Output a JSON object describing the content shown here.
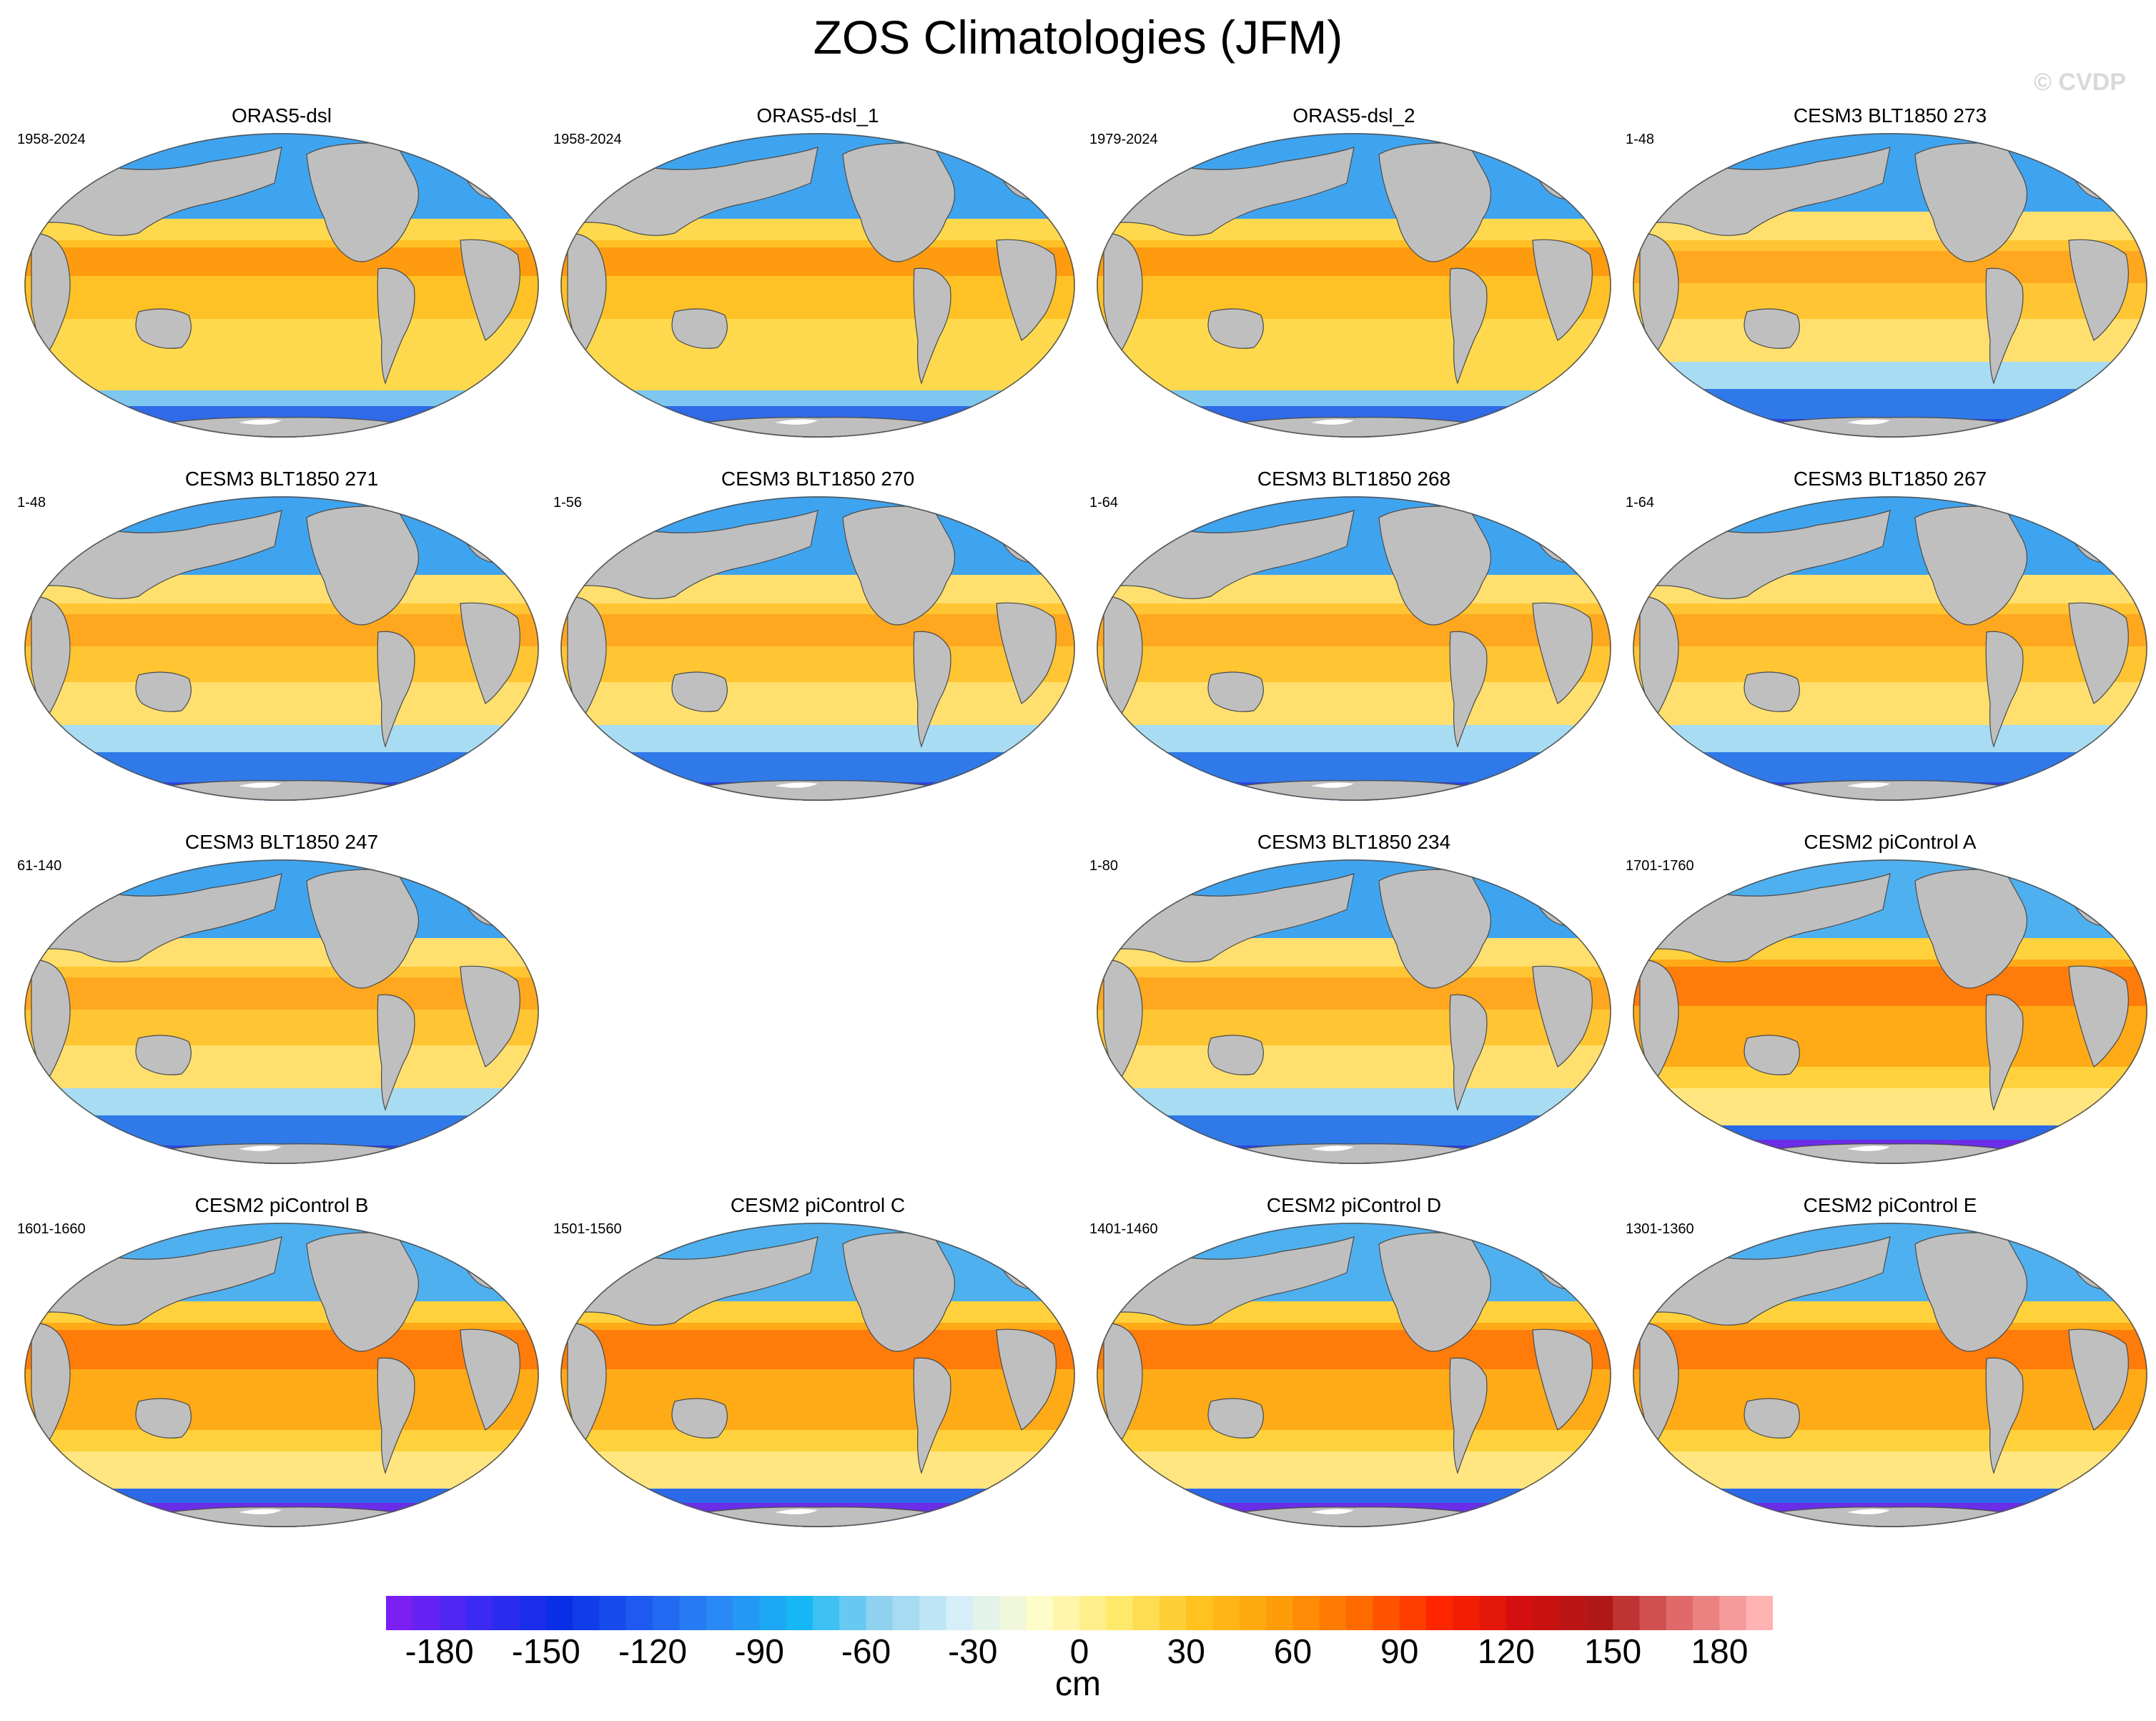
{
  "figure": {
    "title": "ZOS Climatologies (JFM)",
    "watermark": "© CVDP"
  },
  "panels": [
    {
      "title": "ORAS5-dsl",
      "years": "1958-2024",
      "style": "reanalysis"
    },
    {
      "title": "ORAS5-dsl_1",
      "years": "1958-2024",
      "style": "reanalysis"
    },
    {
      "title": "ORAS5-dsl_2",
      "years": "1979-2024",
      "style": "reanalysis"
    },
    {
      "title": "CESM3 BLT1850 273",
      "years": "1-48",
      "style": "cesm3"
    },
    {
      "title": "CESM3 BLT1850 271",
      "years": "1-48",
      "style": "cesm3"
    },
    {
      "title": "CESM3 BLT1850 270",
      "years": "1-56",
      "style": "cesm3"
    },
    {
      "title": "CESM3 BLT1850 268",
      "years": "1-64",
      "style": "cesm3"
    },
    {
      "title": "CESM3 BLT1850 267",
      "years": "1-64",
      "style": "cesm3"
    },
    {
      "title": "CESM3 BLT1850 247",
      "years": "61-140",
      "style": "cesm3"
    },
    null,
    {
      "title": "CESM3 BLT1850 234",
      "years": "1-80",
      "style": "cesm3"
    },
    {
      "title": "CESM2 piControl A",
      "years": "1701-1760",
      "style": "cesm2"
    },
    {
      "title": "CESM2 piControl B",
      "years": "1601-1660",
      "style": "cesm2"
    },
    {
      "title": "CESM2 piControl C",
      "years": "1501-1560",
      "style": "cesm2"
    },
    {
      "title": "CESM2 piControl D",
      "years": "1401-1460",
      "style": "cesm2"
    },
    {
      "title": "CESM2 piControl E",
      "years": "1301-1360",
      "style": "cesm2"
    }
  ],
  "colorbar": {
    "units": "cm",
    "min": -195,
    "max": 195,
    "interval": 7.5,
    "tick_labels": [
      "-180",
      "-150",
      "-120",
      "-90",
      "-60",
      "-30",
      "0",
      "30",
      "60",
      "90",
      "120",
      "150",
      "180"
    ],
    "tick_values": [
      -180,
      -150,
      -120,
      -90,
      -60,
      -30,
      0,
      30,
      60,
      90,
      120,
      150,
      180
    ]
  },
  "colors": {
    "land": "#bfbfbf",
    "coast": "#4a4a4a",
    "ice": "#ffffff",
    "colormap": [
      "#7a1ef2",
      "#3b2af2",
      "#0a2ee6",
      "#1e5af0",
      "#2a8af5",
      "#16b7f5",
      "#8fd2f0",
      "#d5eef7",
      "#fffccc",
      "#ffe96b",
      "#ffc21f",
      "#ff9c0a",
      "#ff6a00",
      "#ff2600",
      "#d40f0f",
      "#b01818",
      "#e06a6a",
      "#ffb3b3"
    ]
  }
}
